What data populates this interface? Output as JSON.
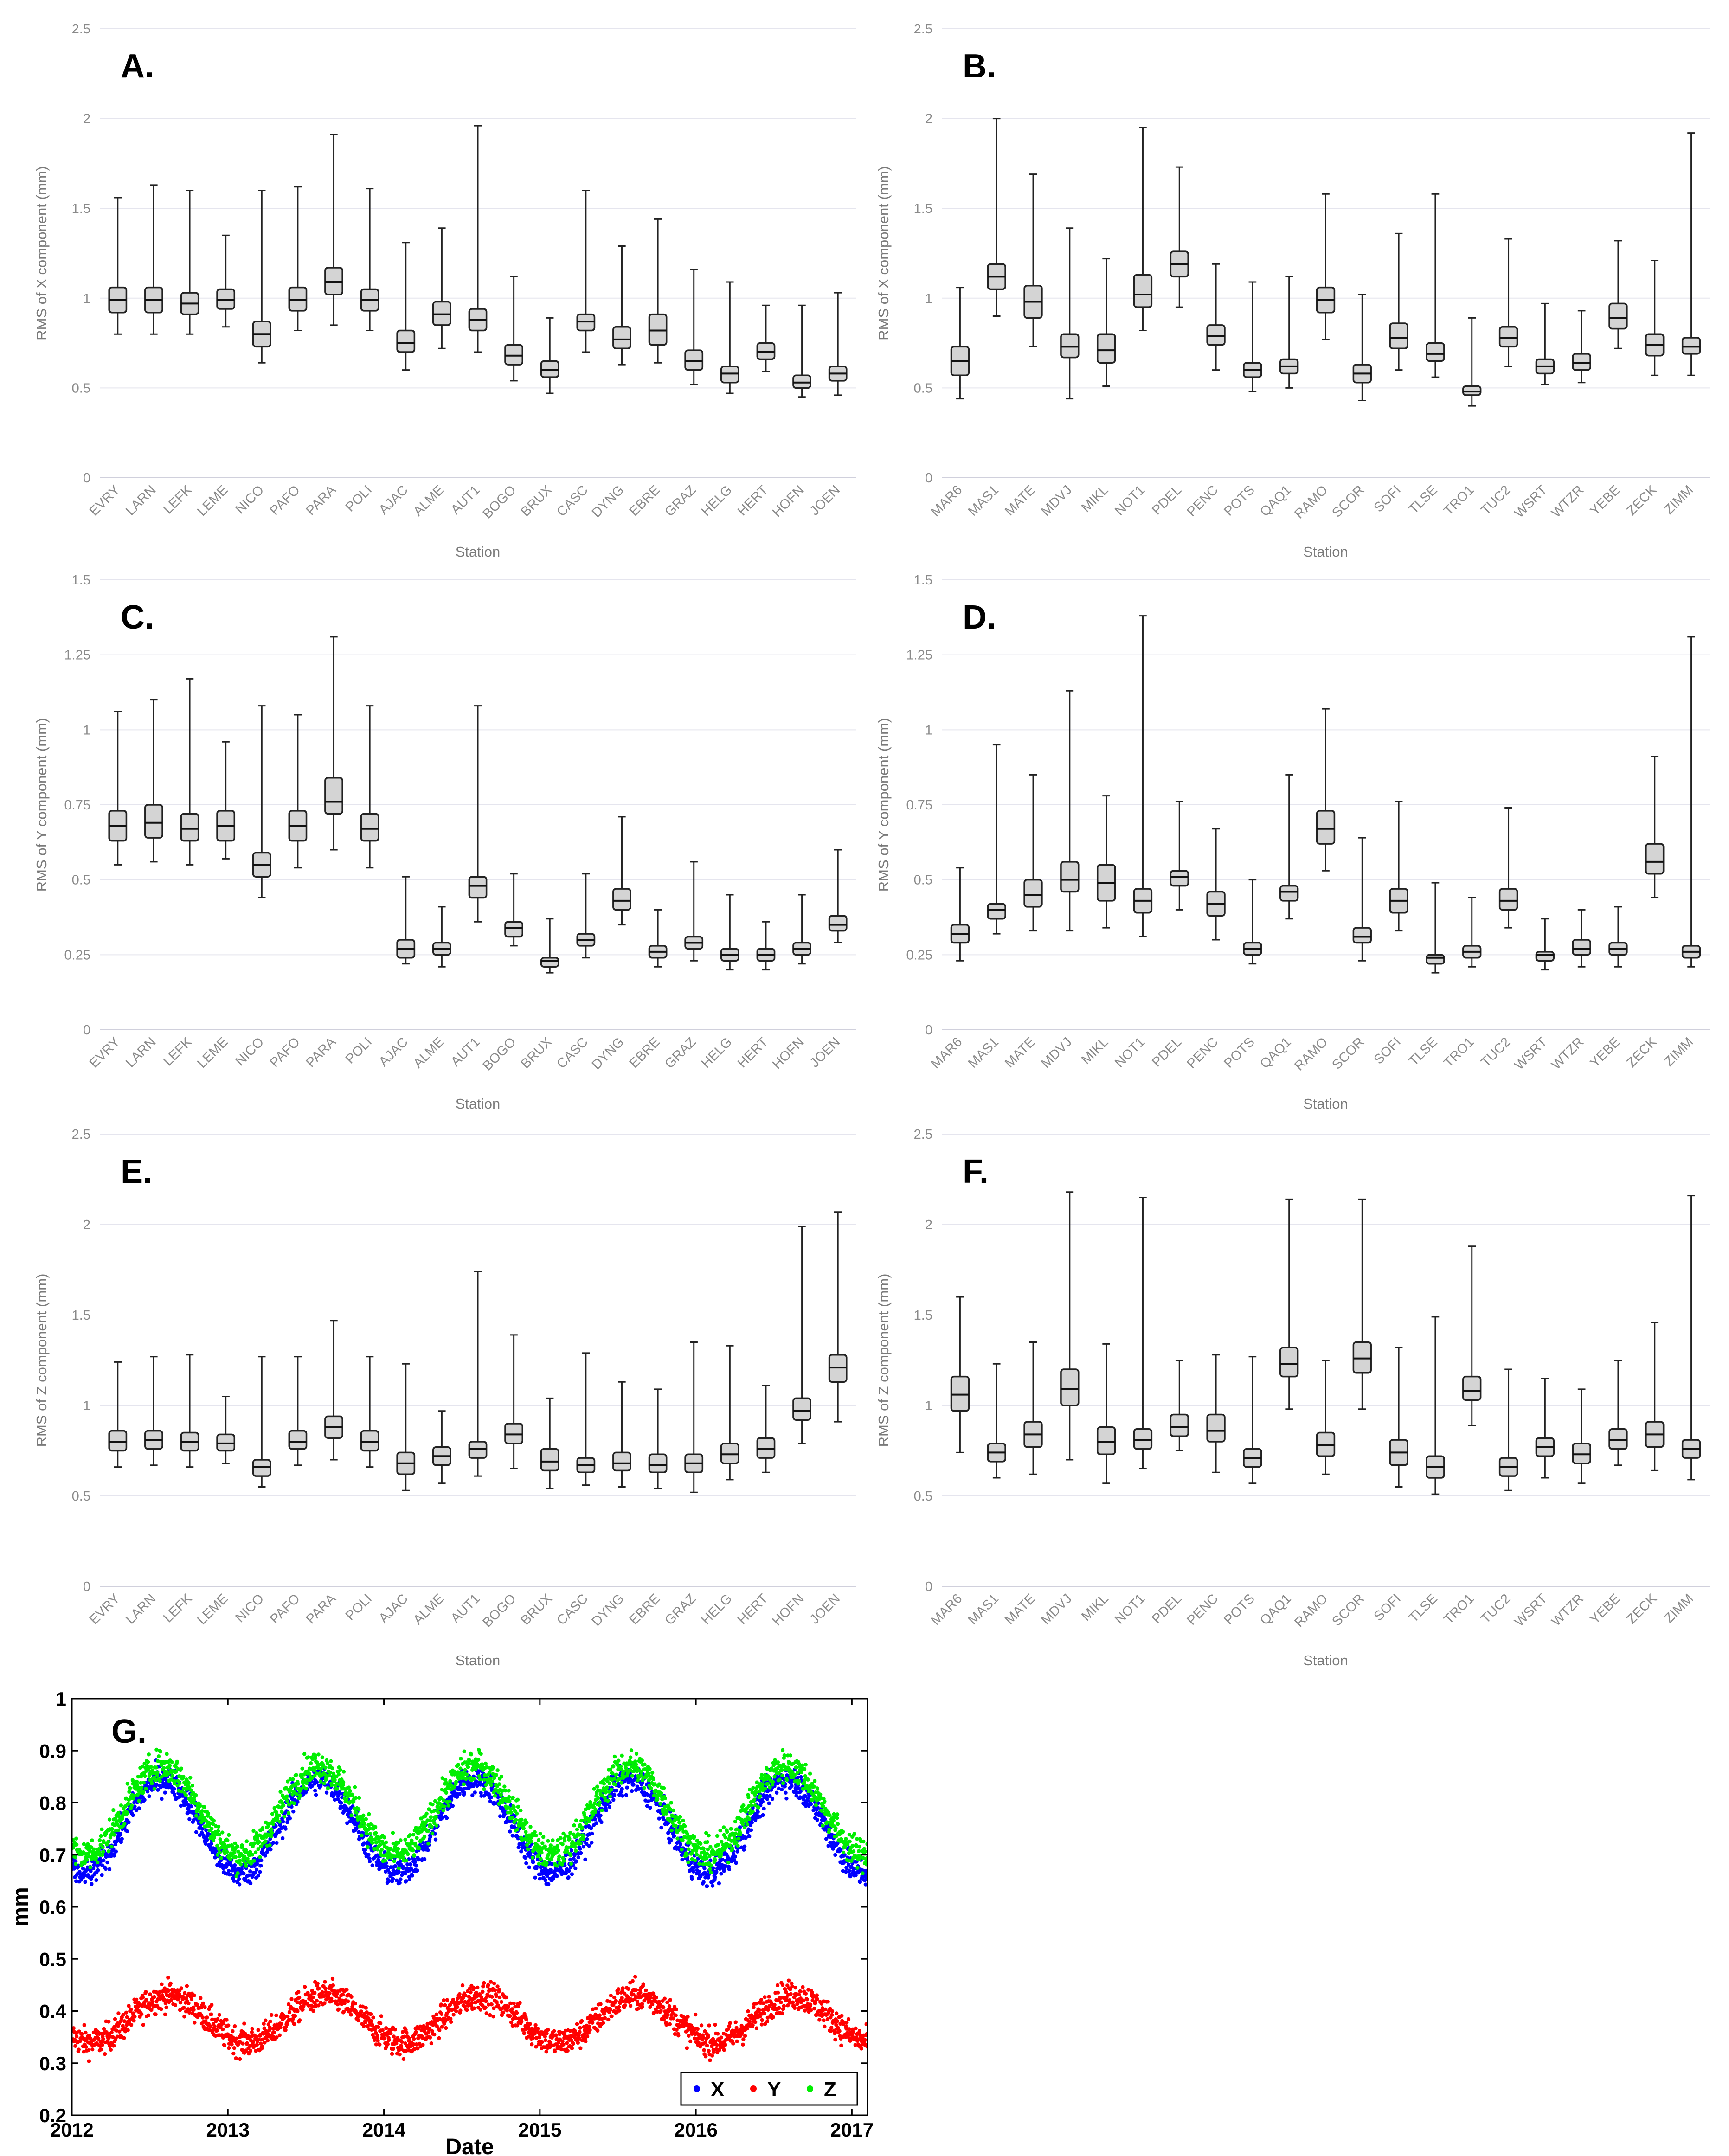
{
  "chart_data": [
    {
      "id": "A",
      "type": "box",
      "panel_label": "A.",
      "xlabel": "Station",
      "ylabel": "RMS of X component (mm)",
      "ylim": [
        0,
        2.5
      ],
      "yticks": [
        0,
        0.5,
        1,
        1.5,
        2,
        2.5
      ],
      "categories": [
        "EVRY",
        "LARN",
        "LEFK",
        "LEME",
        "NICO",
        "PAFO",
        "PARA",
        "POLI",
        "AJAC",
        "ALME",
        "AUT1",
        "BOGO",
        "BRUX",
        "CASC",
        "DYNG",
        "EBRE",
        "GRAZ",
        "HELG",
        "HERT",
        "HOFN",
        "JOEN"
      ],
      "boxes": [
        [
          0.8,
          0.92,
          0.99,
          1.06,
          1.56
        ],
        [
          0.8,
          0.92,
          0.99,
          1.06,
          1.63
        ],
        [
          0.8,
          0.91,
          0.97,
          1.03,
          1.6
        ],
        [
          0.84,
          0.94,
          0.99,
          1.05,
          1.35
        ],
        [
          0.64,
          0.73,
          0.8,
          0.87,
          1.6
        ],
        [
          0.82,
          0.93,
          0.99,
          1.06,
          1.62
        ],
        [
          0.85,
          1.02,
          1.09,
          1.17,
          1.91
        ],
        [
          0.82,
          0.93,
          0.99,
          1.05,
          1.61
        ],
        [
          0.6,
          0.7,
          0.75,
          0.82,
          1.31
        ],
        [
          0.72,
          0.85,
          0.91,
          0.98,
          1.39
        ],
        [
          0.7,
          0.82,
          0.88,
          0.94,
          1.96
        ],
        [
          0.54,
          0.63,
          0.68,
          0.74,
          1.12
        ],
        [
          0.47,
          0.56,
          0.6,
          0.65,
          0.89
        ],
        [
          0.7,
          0.82,
          0.87,
          0.91,
          1.6
        ],
        [
          0.63,
          0.72,
          0.77,
          0.84,
          1.29
        ],
        [
          0.64,
          0.74,
          0.82,
          0.91,
          1.44
        ],
        [
          0.52,
          0.6,
          0.65,
          0.71,
          1.16
        ],
        [
          0.47,
          0.53,
          0.58,
          0.62,
          1.09
        ],
        [
          0.59,
          0.66,
          0.7,
          0.75,
          0.96
        ],
        [
          0.45,
          0.5,
          0.53,
          0.57,
          0.96
        ],
        [
          0.46,
          0.54,
          0.58,
          0.62,
          1.03
        ]
      ]
    },
    {
      "id": "B",
      "type": "box",
      "panel_label": "B.",
      "xlabel": "Station",
      "ylabel": "RMS of X component (mm)",
      "ylim": [
        0,
        2.5
      ],
      "yticks": [
        0,
        0.5,
        1,
        1.5,
        2,
        2.5
      ],
      "categories": [
        "MAR6",
        "MAS1",
        "MATE",
        "MDVJ",
        "MIKL",
        "NOT1",
        "PDEL",
        "PENC",
        "POTS",
        "QAQ1",
        "RAMO",
        "SCOR",
        "SOFI",
        "TLSE",
        "TRO1",
        "TUC2",
        "WSRT",
        "WTZR",
        "YEBE",
        "ZECK",
        "ZIMM"
      ],
      "boxes": [
        [
          0.44,
          0.57,
          0.65,
          0.73,
          1.06
        ],
        [
          0.9,
          1.05,
          1.12,
          1.19,
          2.0
        ],
        [
          0.73,
          0.89,
          0.98,
          1.07,
          1.69
        ],
        [
          0.44,
          0.67,
          0.73,
          0.8,
          1.39
        ],
        [
          0.51,
          0.64,
          0.71,
          0.8,
          1.22
        ],
        [
          0.82,
          0.95,
          1.02,
          1.13,
          1.95
        ],
        [
          0.95,
          1.12,
          1.19,
          1.26,
          1.73
        ],
        [
          0.6,
          0.74,
          0.79,
          0.85,
          1.19
        ],
        [
          0.48,
          0.56,
          0.6,
          0.64,
          1.09
        ],
        [
          0.5,
          0.58,
          0.62,
          0.66,
          1.12
        ],
        [
          0.77,
          0.92,
          0.99,
          1.06,
          1.58
        ],
        [
          0.43,
          0.53,
          0.58,
          0.63,
          1.02
        ],
        [
          0.6,
          0.72,
          0.78,
          0.86,
          1.36
        ],
        [
          0.56,
          0.65,
          0.69,
          0.75,
          1.58
        ],
        [
          0.4,
          0.46,
          0.48,
          0.51,
          0.89
        ],
        [
          0.62,
          0.73,
          0.78,
          0.84,
          1.33
        ],
        [
          0.52,
          0.58,
          0.62,
          0.66,
          0.97
        ],
        [
          0.53,
          0.6,
          0.64,
          0.69,
          0.93
        ],
        [
          0.72,
          0.83,
          0.89,
          0.97,
          1.32
        ],
        [
          0.57,
          0.68,
          0.74,
          0.8,
          1.21
        ],
        [
          0.57,
          0.69,
          0.73,
          0.78,
          1.92
        ]
      ]
    },
    {
      "id": "C",
      "type": "box",
      "panel_label": "C.",
      "xlabel": "Station",
      "ylabel": "RMS of Y component (mm)",
      "ylim": [
        0,
        1.5
      ],
      "yticks": [
        0,
        0.25,
        0.5,
        0.75,
        1,
        1.25,
        1.5
      ],
      "categories": [
        "EVRY",
        "LARN",
        "LEFK",
        "LEME",
        "NICO",
        "PAFO",
        "PARA",
        "POLI",
        "AJAC",
        "ALME",
        "AUT1",
        "BOGO",
        "BRUX",
        "CASC",
        "DYNG",
        "EBRE",
        "GRAZ",
        "HELG",
        "HERT",
        "HOFN",
        "JOEN"
      ],
      "boxes": [
        [
          0.55,
          0.63,
          0.68,
          0.73,
          1.06
        ],
        [
          0.56,
          0.64,
          0.69,
          0.75,
          1.1
        ],
        [
          0.55,
          0.63,
          0.67,
          0.72,
          1.17
        ],
        [
          0.57,
          0.63,
          0.68,
          0.73,
          0.96
        ],
        [
          0.44,
          0.51,
          0.55,
          0.59,
          1.08
        ],
        [
          0.54,
          0.63,
          0.68,
          0.73,
          1.05
        ],
        [
          0.6,
          0.72,
          0.76,
          0.84,
          1.31
        ],
        [
          0.54,
          0.63,
          0.67,
          0.72,
          1.08
        ],
        [
          0.22,
          0.24,
          0.27,
          0.3,
          0.51
        ],
        [
          0.21,
          0.25,
          0.27,
          0.29,
          0.41
        ],
        [
          0.36,
          0.44,
          0.48,
          0.51,
          1.08
        ],
        [
          0.28,
          0.31,
          0.34,
          0.36,
          0.52
        ],
        [
          0.19,
          0.21,
          0.23,
          0.24,
          0.37
        ],
        [
          0.24,
          0.28,
          0.3,
          0.32,
          0.52
        ],
        [
          0.35,
          0.4,
          0.43,
          0.47,
          0.71
        ],
        [
          0.21,
          0.24,
          0.26,
          0.28,
          0.4
        ],
        [
          0.23,
          0.27,
          0.29,
          0.31,
          0.56
        ],
        [
          0.2,
          0.23,
          0.25,
          0.27,
          0.45
        ],
        [
          0.2,
          0.23,
          0.25,
          0.27,
          0.36
        ],
        [
          0.22,
          0.25,
          0.27,
          0.29,
          0.45
        ],
        [
          0.29,
          0.33,
          0.35,
          0.38,
          0.6
        ]
      ]
    },
    {
      "id": "D",
      "type": "box",
      "panel_label": "D.",
      "xlabel": "Station",
      "ylabel": "RMS of Y component (mm)",
      "ylim": [
        0,
        1.5
      ],
      "yticks": [
        0,
        0.25,
        0.5,
        0.75,
        1,
        1.25,
        1.5
      ],
      "categories": [
        "MAR6",
        "MAS1",
        "MATE",
        "MDVJ",
        "MIKL",
        "NOT1",
        "PDEL",
        "PENC",
        "POTS",
        "QAQ1",
        "RAMO",
        "SCOR",
        "SOFI",
        "TLSE",
        "TRO1",
        "TUC2",
        "WSRT",
        "WTZR",
        "YEBE",
        "ZECK",
        "ZIMM"
      ],
      "boxes": [
        [
          0.23,
          0.29,
          0.32,
          0.35,
          0.54
        ],
        [
          0.32,
          0.37,
          0.4,
          0.42,
          0.95
        ],
        [
          0.33,
          0.41,
          0.45,
          0.5,
          0.85
        ],
        [
          0.33,
          0.46,
          0.5,
          0.56,
          1.13
        ],
        [
          0.34,
          0.43,
          0.49,
          0.55,
          0.78
        ],
        [
          0.31,
          0.39,
          0.43,
          0.47,
          1.38
        ],
        [
          0.4,
          0.48,
          0.51,
          0.53,
          0.76
        ],
        [
          0.3,
          0.38,
          0.42,
          0.46,
          0.67
        ],
        [
          0.22,
          0.25,
          0.27,
          0.29,
          0.5
        ],
        [
          0.37,
          0.43,
          0.46,
          0.48,
          0.85
        ],
        [
          0.53,
          0.62,
          0.67,
          0.73,
          1.07
        ],
        [
          0.23,
          0.29,
          0.31,
          0.34,
          0.64
        ],
        [
          0.33,
          0.39,
          0.43,
          0.47,
          0.76
        ],
        [
          0.19,
          0.22,
          0.24,
          0.25,
          0.49
        ],
        [
          0.21,
          0.24,
          0.26,
          0.28,
          0.44
        ],
        [
          0.34,
          0.4,
          0.43,
          0.47,
          0.74
        ],
        [
          0.2,
          0.23,
          0.25,
          0.26,
          0.37
        ],
        [
          0.21,
          0.25,
          0.27,
          0.3,
          0.4
        ],
        [
          0.21,
          0.25,
          0.27,
          0.29,
          0.41
        ],
        [
          0.44,
          0.52,
          0.56,
          0.62,
          0.91
        ],
        [
          0.21,
          0.24,
          0.26,
          0.28,
          1.31
        ]
      ]
    },
    {
      "id": "E",
      "type": "box",
      "panel_label": "E.",
      "xlabel": "Station",
      "ylabel": "RMS of Z component (mm)",
      "ylim": [
        0,
        2.5
      ],
      "yticks": [
        0,
        0.5,
        1,
        1.5,
        2,
        2.5
      ],
      "categories": [
        "EVRY",
        "LARN",
        "LEFK",
        "LEME",
        "NICO",
        "PAFO",
        "PARA",
        "POLI",
        "AJAC",
        "ALME",
        "AUT1",
        "BOGO",
        "BRUX",
        "CASC",
        "DYNG",
        "EBRE",
        "GRAZ",
        "HELG",
        "HERT",
        "HOFN",
        "JOEN"
      ],
      "boxes": [
        [
          0.66,
          0.75,
          0.8,
          0.86,
          1.24
        ],
        [
          0.67,
          0.76,
          0.81,
          0.86,
          1.27
        ],
        [
          0.66,
          0.75,
          0.8,
          0.85,
          1.28
        ],
        [
          0.68,
          0.75,
          0.79,
          0.84,
          1.05
        ],
        [
          0.55,
          0.61,
          0.66,
          0.7,
          1.27
        ],
        [
          0.67,
          0.76,
          0.8,
          0.86,
          1.27
        ],
        [
          0.7,
          0.82,
          0.88,
          0.94,
          1.47
        ],
        [
          0.66,
          0.75,
          0.8,
          0.86,
          1.27
        ],
        [
          0.53,
          0.62,
          0.68,
          0.74,
          1.23
        ],
        [
          0.57,
          0.67,
          0.72,
          0.77,
          0.97
        ],
        [
          0.61,
          0.71,
          0.76,
          0.8,
          1.74
        ],
        [
          0.65,
          0.79,
          0.84,
          0.9,
          1.39
        ],
        [
          0.54,
          0.64,
          0.69,
          0.76,
          1.04
        ],
        [
          0.56,
          0.63,
          0.67,
          0.71,
          1.29
        ],
        [
          0.55,
          0.64,
          0.68,
          0.74,
          1.13
        ],
        [
          0.54,
          0.63,
          0.67,
          0.73,
          1.09
        ],
        [
          0.52,
          0.63,
          0.68,
          0.73,
          1.35
        ],
        [
          0.59,
          0.68,
          0.73,
          0.79,
          1.33
        ],
        [
          0.63,
          0.71,
          0.76,
          0.82,
          1.11
        ],
        [
          0.79,
          0.92,
          0.97,
          1.04,
          1.99
        ],
        [
          0.91,
          1.13,
          1.21,
          1.28,
          2.07
        ]
      ]
    },
    {
      "id": "F",
      "type": "box",
      "panel_label": "F.",
      "xlabel": "Station",
      "ylabel": "RMS of Z component (mm)",
      "ylim": [
        0,
        2.5
      ],
      "yticks": [
        0,
        0.5,
        1,
        1.5,
        2,
        2.5
      ],
      "categories": [
        "MAR6",
        "MAS1",
        "MATE",
        "MDVJ",
        "MIKL",
        "NOT1",
        "PDEL",
        "PENC",
        "POTS",
        "QAQ1",
        "RAMO",
        "SCOR",
        "SOFI",
        "TLSE",
        "TRO1",
        "TUC2",
        "WSRT",
        "WTZR",
        "YEBE",
        "ZECK",
        "ZIMM"
      ],
      "boxes": [
        [
          0.74,
          0.97,
          1.06,
          1.16,
          1.6
        ],
        [
          0.6,
          0.69,
          0.74,
          0.79,
          1.23
        ],
        [
          0.62,
          0.77,
          0.84,
          0.91,
          1.35
        ],
        [
          0.7,
          1.0,
          1.09,
          1.2,
          2.18
        ],
        [
          0.57,
          0.73,
          0.8,
          0.88,
          1.34
        ],
        [
          0.65,
          0.76,
          0.81,
          0.87,
          2.15
        ],
        [
          0.75,
          0.83,
          0.88,
          0.95,
          1.25
        ],
        [
          0.63,
          0.8,
          0.86,
          0.95,
          1.28
        ],
        [
          0.57,
          0.66,
          0.71,
          0.76,
          1.27
        ],
        [
          0.98,
          1.16,
          1.23,
          1.32,
          2.14
        ],
        [
          0.62,
          0.72,
          0.78,
          0.85,
          1.25
        ],
        [
          0.98,
          1.18,
          1.26,
          1.35,
          2.14
        ],
        [
          0.55,
          0.67,
          0.74,
          0.81,
          1.32
        ],
        [
          0.51,
          0.6,
          0.66,
          0.72,
          1.49
        ],
        [
          0.89,
          1.03,
          1.08,
          1.16,
          1.88
        ],
        [
          0.53,
          0.61,
          0.66,
          0.71,
          1.2
        ],
        [
          0.6,
          0.72,
          0.77,
          0.82,
          1.15
        ],
        [
          0.57,
          0.68,
          0.73,
          0.79,
          1.09
        ],
        [
          0.67,
          0.76,
          0.81,
          0.87,
          1.25
        ],
        [
          0.64,
          0.77,
          0.84,
          0.91,
          1.46
        ],
        [
          0.59,
          0.71,
          0.76,
          0.81,
          2.16
        ]
      ]
    },
    {
      "id": "G",
      "type": "scatter",
      "panel_label": "G.",
      "xlabel": "Date",
      "ylabel": "mm",
      "xlim": [
        2012,
        2017.1
      ],
      "ylim": [
        0.2,
        1.0
      ],
      "xticks": [
        "2012",
        "2013",
        "2014",
        "2015",
        "2016",
        "2017"
      ],
      "yticks": [
        "0.2",
        "0.3",
        "0.4",
        "0.5",
        "0.6",
        "0.7",
        "0.8",
        "0.9",
        "1"
      ],
      "legend": "bottom-right",
      "series": [
        {
          "name": "X",
          "color": "#0000ff",
          "mean": 0.755,
          "amplitude": 0.09,
          "phase": 0.58,
          "spread": 0.05
        },
        {
          "name": "Y",
          "color": "#ff0000",
          "mean": 0.385,
          "amplitude": 0.045,
          "phase": 0.62,
          "spread": 0.05
        },
        {
          "name": "Z",
          "color": "#00ee00",
          "mean": 0.785,
          "amplitude": 0.085,
          "phase": 0.58,
          "spread": 0.055
        }
      ]
    }
  ]
}
